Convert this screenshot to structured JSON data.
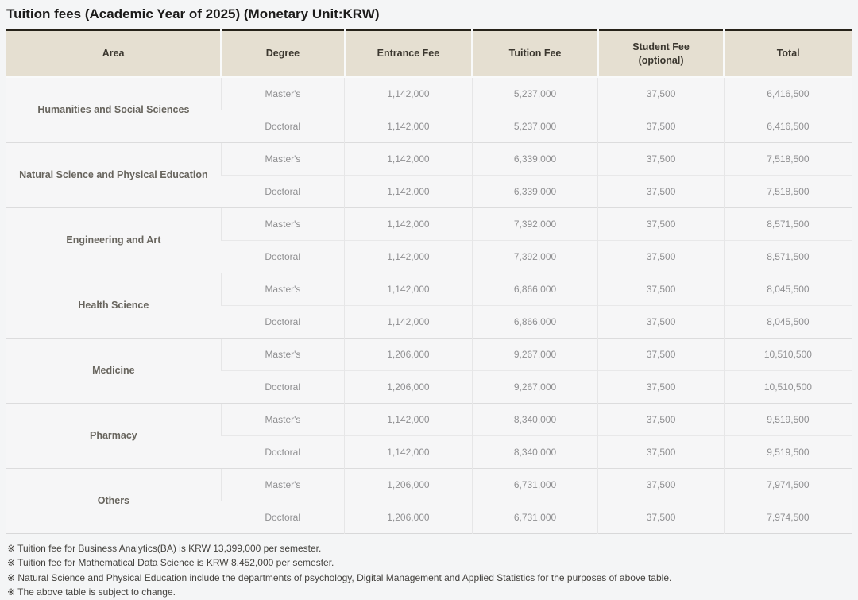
{
  "title": "Tuition fees (Academic Year of 2025) (Monetary Unit:KRW)",
  "table": {
    "headers": [
      {
        "t": "Area"
      },
      {
        "t": "Degree"
      },
      {
        "t": "Entrance Fee"
      },
      {
        "t": "Tuition Fee"
      },
      {
        "t": "Student Fee",
        "b": "(optional)"
      },
      {
        "t": "Total"
      }
    ],
    "groups": [
      {
        "area": "Humanities and Social Sciences",
        "rows": [
          {
            "degree": "Master's",
            "entrance": "1,142,000",
            "tuition": "5,237,000",
            "student": "37,500",
            "total": "6,416,500"
          },
          {
            "degree": "Doctoral",
            "entrance": "1,142,000",
            "tuition": "5,237,000",
            "student": "37,500",
            "total": "6,416,500"
          }
        ]
      },
      {
        "area": "Natural Science and Physical Education",
        "rows": [
          {
            "degree": "Master's",
            "entrance": "1,142,000",
            "tuition": "6,339,000",
            "student": "37,500",
            "total": "7,518,500"
          },
          {
            "degree": "Doctoral",
            "entrance": "1,142,000",
            "tuition": "6,339,000",
            "student": "37,500",
            "total": "7,518,500"
          }
        ]
      },
      {
        "area": "Engineering and Art",
        "rows": [
          {
            "degree": "Master's",
            "entrance": "1,142,000",
            "tuition": "7,392,000",
            "student": "37,500",
            "total": "8,571,500"
          },
          {
            "degree": "Doctoral",
            "entrance": "1,142,000",
            "tuition": "7,392,000",
            "student": "37,500",
            "total": "8,571,500"
          }
        ]
      },
      {
        "area": "Health Science",
        "rows": [
          {
            "degree": "Master's",
            "entrance": "1,142,000",
            "tuition": "6,866,000",
            "student": "37,500",
            "total": "8,045,500"
          },
          {
            "degree": "Doctoral",
            "entrance": "1,142,000",
            "tuition": "6,866,000",
            "student": "37,500",
            "total": "8,045,500"
          }
        ]
      },
      {
        "area": "Medicine",
        "rows": [
          {
            "degree": "Master's",
            "entrance": "1,206,000",
            "tuition": "9,267,000",
            "student": "37,500",
            "total": "10,510,500"
          },
          {
            "degree": "Doctoral",
            "entrance": "1,206,000",
            "tuition": "9,267,000",
            "student": "37,500",
            "total": "10,510,500"
          }
        ]
      },
      {
        "area": "Pharmacy",
        "rows": [
          {
            "degree": "Master's",
            "entrance": "1,142,000",
            "tuition": "8,340,000",
            "student": "37,500",
            "total": "9,519,500"
          },
          {
            "degree": "Doctoral",
            "entrance": "1,142,000",
            "tuition": "8,340,000",
            "student": "37,500",
            "total": "9,519,500"
          }
        ]
      },
      {
        "area": "Others",
        "rows": [
          {
            "degree": "Master's",
            "entrance": "1,206,000",
            "tuition": "6,731,000",
            "student": "37,500",
            "total": "7,974,500"
          },
          {
            "degree": "Doctoral",
            "entrance": "1,206,000",
            "tuition": "6,731,000",
            "student": "37,500",
            "total": "7,974,500"
          }
        ]
      }
    ]
  },
  "notes": [
    "※ Tuition fee for Business Analytics(BA) is KRW 13,399,000 per semester.",
    "※ Tuition fee for Mathematical Data Science is KRW 8,452,000 per semester.",
    "※ Natural Science and Physical Education include the departments of psychology, Digital Management and Applied Statistics for the purposes of above table.",
    "※ The above table is subject to change."
  ],
  "colors": {
    "header_bg": "#e5dfd1",
    "table_top_border": "#262219",
    "cell_bg": "#f6f6f7",
    "page_bg": "#f4f5f6"
  }
}
